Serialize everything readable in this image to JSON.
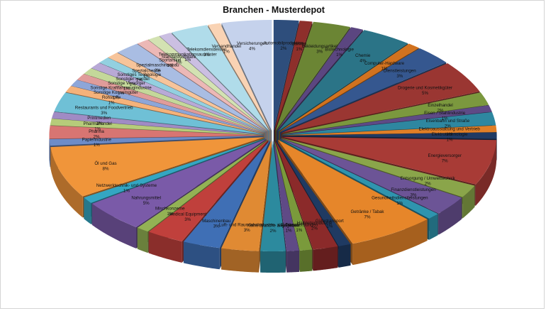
{
  "chart_data": {
    "type": "pie",
    "style": "3d-exploded",
    "title": "Branchen - Musterdepot",
    "unit": "%",
    "slices": [
      {
        "label": "Automobilproduktion",
        "value": 2,
        "color": "#2e4e7c"
      },
      {
        "label": "Banken",
        "value": 1,
        "color": "#8e2f2b"
      },
      {
        "label": "Bekleidungsartikel",
        "value": 3,
        "color": "#6b8534"
      },
      {
        "label": "Biotechnologie",
        "value": 1,
        "color": "#5b4680"
      },
      {
        "label": "Chemie",
        "value": 4,
        "color": "#2b7487"
      },
      {
        "label": "Computer-Hardware",
        "value": 1,
        "color": "#d1721f"
      },
      {
        "label": "Dienstleistungen",
        "value": 3,
        "color": "#35578f"
      },
      {
        "label": "Drogerie und Kosmetikgüter",
        "value": 5,
        "color": "#9a3632"
      },
      {
        "label": "Einzelhandel",
        "value": 2,
        "color": "#7b983e"
      },
      {
        "label": "Eisen / Stahlindustrie",
        "value": 1,
        "color": "#5e4a86"
      },
      {
        "label": "Eisenbahn und Straße",
        "value": 2,
        "color": "#2e87a0"
      },
      {
        "label": "Elektroausstattung und Vertrieb",
        "value": 1,
        "color": "#e07f27"
      },
      {
        "label": "Elektrotechnologie",
        "value": 1,
        "color": "#203a63"
      },
      {
        "label": "Energieversorger",
        "value": 7,
        "color": "#a83b36"
      },
      {
        "label": "Entsorgung / Umwelttechnik",
        "value": 2,
        "color": "#8aa54a"
      },
      {
        "label": "Finanzdienstleistungen",
        "value": 3,
        "color": "#6c5496"
      },
      {
        "label": "Gesundheitsdienstleistungen",
        "value": 1,
        "color": "#2f94ae"
      },
      {
        "label": "Getränke / Tabak",
        "value": 7,
        "color": "#e6862a"
      },
      {
        "label": "Gütertransport",
        "value": 1,
        "color": "#1f3a62"
      },
      {
        "label": "Halbleiterindustrie",
        "value": 2,
        "color": "#8b2a2a"
      },
      {
        "label": "IT-Dienstleistungen",
        "value": 1,
        "color": "#7a9a3b"
      },
      {
        "label": "Kaufhäuser",
        "value": 1,
        "color": "#5f4a86"
      },
      {
        "label": "Keine Branche angegeben",
        "value": 2,
        "color": "#2c8a9e"
      },
      {
        "label": "Luft- und Raumfahrtindustrie",
        "value": 3,
        "color": "#e08a33"
      },
      {
        "label": "Maschinenbau",
        "value": 3,
        "color": "#3f6fb5"
      },
      {
        "label": "Medical Equipment",
        "value": 3,
        "color": "#c0403c"
      },
      {
        "label": "Mischkonzerne",
        "value": 1,
        "color": "#93b254"
      },
      {
        "label": "Nahrungsmittel",
        "value": 5,
        "color": "#7a5aa8"
      },
      {
        "label": "Netzwerktechnik- und Systeme",
        "value": 1,
        "color": "#34a6c2"
      },
      {
        "label": "Öl und Gas",
        "value": 8,
        "color": "#f0953a"
      },
      {
        "label": "Papierindustrie",
        "value": 1,
        "color": "#6d8cc8"
      },
      {
        "label": "Pharma",
        "value": 2,
        "color": "#d87572"
      },
      {
        "label": "Pharmahandel",
        "value": 1,
        "color": "#b6cc7a"
      },
      {
        "label": "Printmedien",
        "value": 1,
        "color": "#a08bc4"
      },
      {
        "label": "Restaurants und Foodvertrieb",
        "value": 3,
        "color": "#6fc0d6"
      },
      {
        "label": "Rohstoffe",
        "value": 1,
        "color": "#f5b27a"
      },
      {
        "label": "Sonstige Konsumgüter",
        "value": 1,
        "color": "#8da6d8"
      },
      {
        "label": "Sonstige Kraftfahrzeugindustrie",
        "value": 1,
        "color": "#e09c9a"
      },
      {
        "label": "Sonstige Versorger",
        "value": 1,
        "color": "#c4d89a"
      },
      {
        "label": "Sonstiger Handel",
        "value": 1,
        "color": "#b8a9d6"
      },
      {
        "label": "Sonstiges Technologie",
        "value": 1,
        "color": "#93d0e0"
      },
      {
        "label": "Spezialchemie",
        "value": 1,
        "color": "#f7c49a"
      },
      {
        "label": "Spezialmaschinenbau",
        "value": 2,
        "color": "#a9bde3"
      },
      {
        "label": "Sportartikel",
        "value": 1,
        "color": "#ecb8b6"
      },
      {
        "label": "Standardsoftware",
        "value": 1,
        "color": "#d3e2b2"
      },
      {
        "label": "Telekommunikationsausrüster",
        "value": 1,
        "color": "#cbbfe2"
      },
      {
        "label": "Telekomdienstleister",
        "value": 3,
        "color": "#b0dcea"
      },
      {
        "label": "Versandhandel",
        "value": 1,
        "color": "#f9d3b4"
      },
      {
        "label": "Versicherungen",
        "value": 4,
        "color": "#c5d2ec"
      }
    ]
  }
}
